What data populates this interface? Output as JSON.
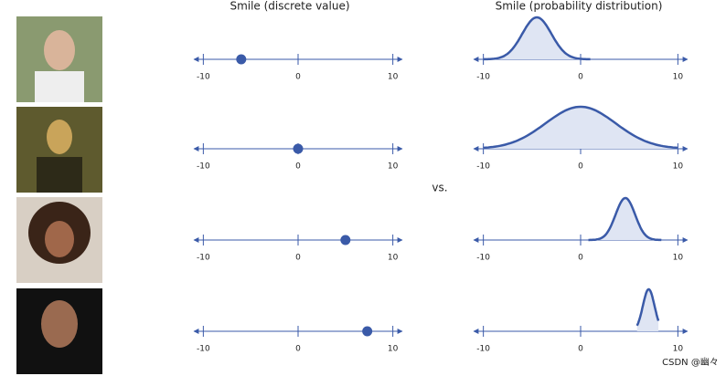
{
  "titles": {
    "discrete": "Smile (discrete value)",
    "distribution": "Smile (probability distribution)"
  },
  "versus": "vs.",
  "watermark": "CSDN @幽々",
  "axis": {
    "lim": [
      -11,
      11
    ],
    "ticks": [
      -10,
      0,
      10
    ]
  },
  "rows": [
    {
      "value": -6,
      "mean": -4.5,
      "sd": 1.5,
      "from": -10,
      "to": 1
    },
    {
      "value": 0,
      "mean": 0,
      "sd": 3.6,
      "from": -10,
      "to": 10
    },
    {
      "value": 5,
      "mean": 4.6,
      "sd": 1,
      "from": 0.8,
      "to": 8.3
    },
    {
      "value": 7.3,
      "mean": 7,
      "sd": 0.6,
      "from": 5.8,
      "to": 8
    }
  ]
}
